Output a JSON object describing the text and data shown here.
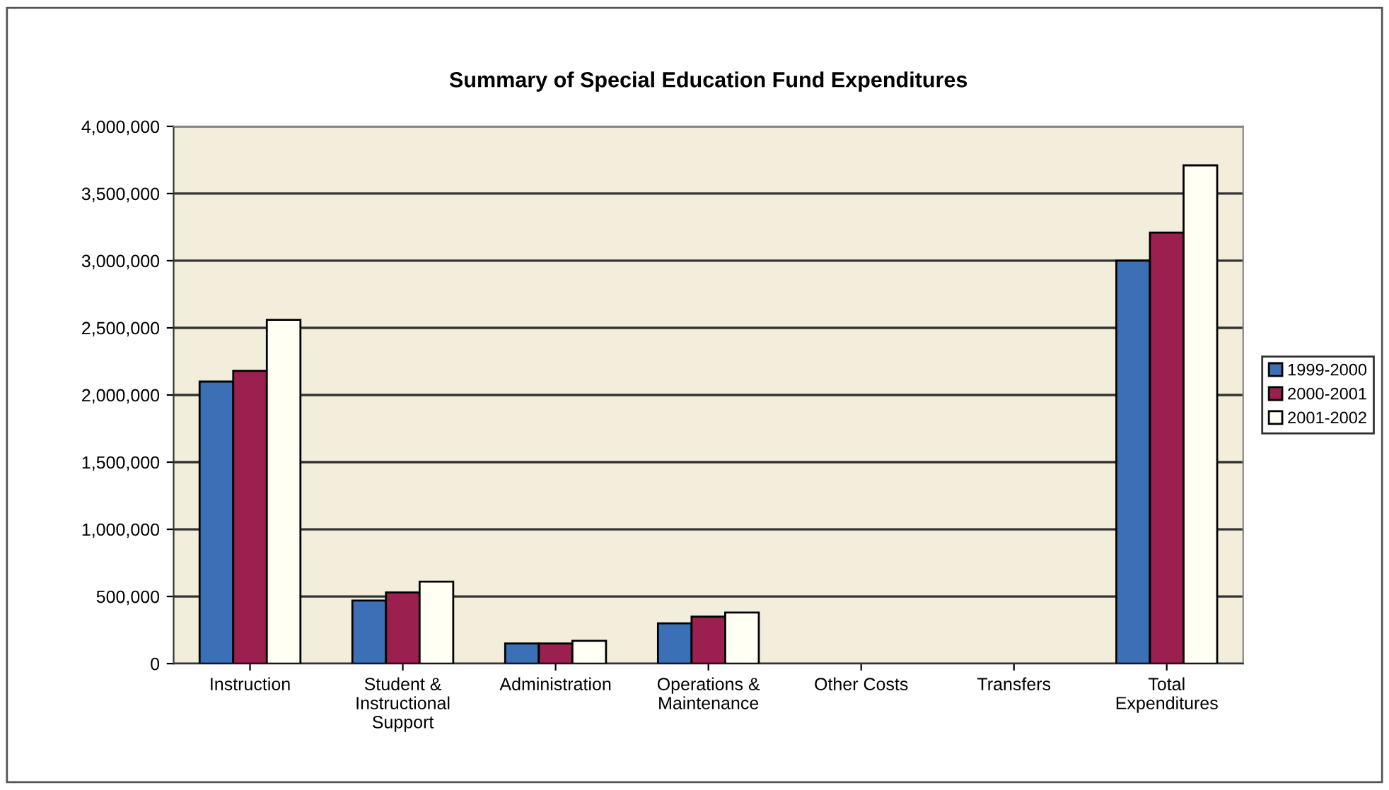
{
  "chart_data": {
    "type": "bar",
    "title": "Summary of Special Education Fund Expenditures",
    "categories": [
      "Instruction",
      "Student &\nInstructional\nSupport",
      "Administration",
      "Operations &\nMaintenance",
      "Other Costs",
      "Transfers",
      "Total\nExpenditures"
    ],
    "series": [
      {
        "name": "1999-2000",
        "color": "#3b6fb6",
        "values": [
          2100000,
          470000,
          150000,
          300000,
          0,
          0,
          3000000
        ]
      },
      {
        "name": "2000-2001",
        "color": "#9b1f4f",
        "values": [
          2180000,
          530000,
          150000,
          350000,
          0,
          0,
          3210000
        ]
      },
      {
        "name": "2001-2002",
        "color": "#fffff4",
        "values": [
          2560000,
          610000,
          170000,
          380000,
          0,
          0,
          3710000
        ]
      }
    ],
    "ylim": [
      0,
      4000000
    ],
    "yticks": [
      {
        "value": 0,
        "label": "0"
      },
      {
        "value": 500000,
        "label": "500,000"
      },
      {
        "value": 1000000,
        "label": "1,000,000"
      },
      {
        "value": 1500000,
        "label": "1,500,000"
      },
      {
        "value": 2000000,
        "label": "2,000,000"
      },
      {
        "value": 2500000,
        "label": "2,500,000"
      },
      {
        "value": 3000000,
        "label": "3,000,000"
      },
      {
        "value": 3500000,
        "label": "3,500,000"
      },
      {
        "value": 4000000,
        "label": "4,000,000"
      }
    ],
    "grid": "y",
    "legend": "right"
  }
}
